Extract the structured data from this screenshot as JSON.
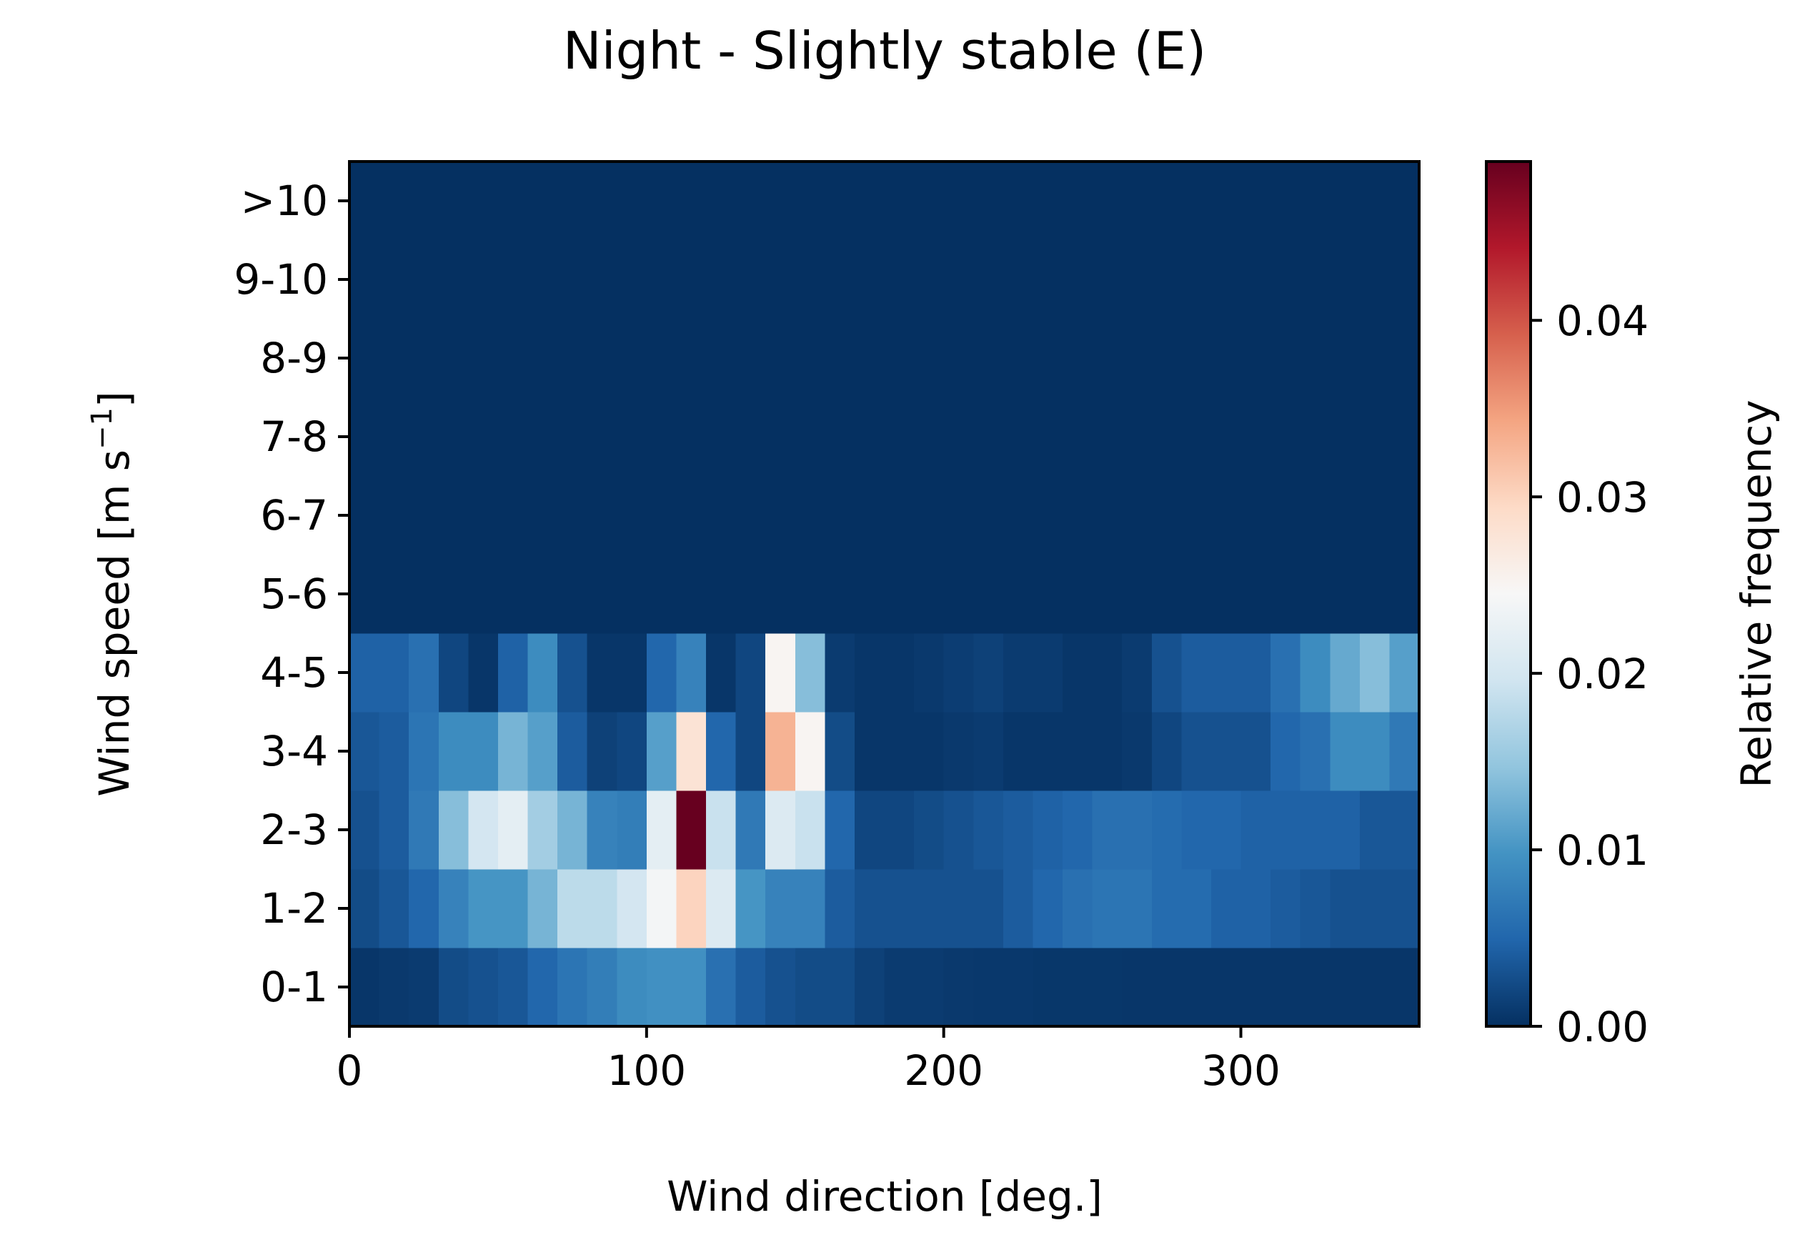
{
  "chart_data": {
    "type": "heatmap",
    "title": "Night - Slightly stable (E)",
    "xlabel": "Wind direction [deg.]",
    "ylabel_main": "Wind speed [m s",
    "ylabel_sup": "−1",
    "ylabel_end": "]",
    "colorbar_label": "Relative frequency",
    "colormap": "RdBu_r",
    "xlim": [
      0,
      360
    ],
    "x_bin_width": 10,
    "x_ticks": [
      0,
      100,
      200,
      300
    ],
    "x_tick_labels": [
      "0",
      "100",
      "200",
      "300"
    ],
    "y_categories": [
      "0-1",
      "1-2",
      "2-3",
      "3-4",
      "4-5",
      "5-6",
      "6-7",
      "7-8",
      "8-9",
      "9-10",
      ">10"
    ],
    "clim": [
      0,
      0.049
    ],
    "colorbar_ticks": [
      0,
      0.01,
      0.02,
      0.03,
      0.04
    ],
    "colorbar_tick_labels": [
      "0.00",
      "0.01",
      "0.02",
      "0.03",
      "0.04"
    ],
    "values": [
      [
        0.0005,
        0.0008,
        0.001,
        0.0025,
        0.003,
        0.0035,
        0.005,
        0.0065,
        0.0075,
        0.009,
        0.0095,
        0.0095,
        0.006,
        0.004,
        0.003,
        0.0025,
        0.0025,
        0.0015,
        0.001,
        0.001,
        0.0008,
        0.0007,
        0.0007,
        0.0006,
        0.0006,
        0.0006,
        0.0005,
        0.0005,
        0.0005,
        0.0005,
        0.0005,
        0.0005,
        0.0005,
        0.0005,
        0.0005,
        0.0005
      ],
      [
        0.0025,
        0.0035,
        0.005,
        0.008,
        0.01,
        0.01,
        0.013,
        0.018,
        0.018,
        0.02,
        0.024,
        0.03,
        0.021,
        0.01,
        0.008,
        0.008,
        0.004,
        0.003,
        0.003,
        0.003,
        0.003,
        0.003,
        0.004,
        0.005,
        0.006,
        0.0065,
        0.0065,
        0.0055,
        0.0055,
        0.0045,
        0.0045,
        0.004,
        0.0035,
        0.003,
        0.003,
        0.003
      ],
      [
        0.003,
        0.004,
        0.007,
        0.014,
        0.02,
        0.022,
        0.016,
        0.013,
        0.008,
        0.0075,
        0.022,
        0.049,
        0.019,
        0.007,
        0.021,
        0.019,
        0.005,
        0.002,
        0.002,
        0.0025,
        0.003,
        0.0035,
        0.004,
        0.0045,
        0.005,
        0.006,
        0.006,
        0.0055,
        0.005,
        0.005,
        0.0045,
        0.0045,
        0.0045,
        0.0045,
        0.0035,
        0.0035
      ],
      [
        0.0035,
        0.004,
        0.0065,
        0.009,
        0.009,
        0.013,
        0.011,
        0.004,
        0.0015,
        0.002,
        0.011,
        0.028,
        0.005,
        0.002,
        0.033,
        0.025,
        0.0025,
        0.0005,
        0.0005,
        0.0005,
        0.0008,
        0.001,
        0.0005,
        0.0005,
        0.0005,
        0.0005,
        0.0008,
        0.002,
        0.003,
        0.003,
        0.003,
        0.005,
        0.006,
        0.009,
        0.009,
        0.007
      ],
      [
        0.0045,
        0.0045,
        0.006,
        0.002,
        0.0005,
        0.0045,
        0.009,
        0.003,
        0.0005,
        0.0005,
        0.005,
        0.008,
        0.0005,
        0.002,
        0.025,
        0.014,
        0.001,
        0.0005,
        0.0005,
        0.0008,
        0.0012,
        0.0015,
        0.001,
        0.001,
        0.0005,
        0.0005,
        0.001,
        0.003,
        0.004,
        0.004,
        0.004,
        0.006,
        0.009,
        0.012,
        0.014,
        0.011
      ],
      [
        0,
        0,
        0,
        0,
        0,
        0,
        0,
        0,
        0,
        0,
        0,
        0,
        0,
        0,
        0,
        0,
        0,
        0,
        0,
        0,
        0,
        0,
        0,
        0,
        0,
        0,
        0,
        0,
        0,
        0,
        0,
        0,
        0,
        0,
        0,
        0
      ],
      [
        0,
        0,
        0,
        0,
        0,
        0,
        0,
        0,
        0,
        0,
        0,
        0,
        0,
        0,
        0,
        0,
        0,
        0,
        0,
        0,
        0,
        0,
        0,
        0,
        0,
        0,
        0,
        0,
        0,
        0,
        0,
        0,
        0,
        0,
        0,
        0
      ],
      [
        0,
        0,
        0,
        0,
        0,
        0,
        0,
        0,
        0,
        0,
        0,
        0,
        0,
        0,
        0,
        0,
        0,
        0,
        0,
        0,
        0,
        0,
        0,
        0,
        0,
        0,
        0,
        0,
        0,
        0,
        0,
        0,
        0,
        0,
        0,
        0
      ],
      [
        0,
        0,
        0,
        0,
        0,
        0,
        0,
        0,
        0,
        0,
        0,
        0,
        0,
        0,
        0,
        0,
        0,
        0,
        0,
        0,
        0,
        0,
        0,
        0,
        0,
        0,
        0,
        0,
        0,
        0,
        0,
        0,
        0,
        0,
        0,
        0
      ],
      [
        0,
        0,
        0,
        0,
        0,
        0,
        0,
        0,
        0,
        0,
        0,
        0,
        0,
        0,
        0,
        0,
        0,
        0,
        0,
        0,
        0,
        0,
        0,
        0,
        0,
        0,
        0,
        0,
        0,
        0,
        0,
        0,
        0,
        0,
        0,
        0
      ],
      [
        0,
        0,
        0,
        0,
        0,
        0,
        0,
        0,
        0,
        0,
        0,
        0,
        0,
        0,
        0,
        0,
        0,
        0,
        0,
        0,
        0,
        0,
        0,
        0,
        0,
        0,
        0,
        0,
        0,
        0,
        0,
        0,
        0,
        0,
        0,
        0
      ]
    ],
    "grid": false,
    "legend": "colorbar-right"
  }
}
